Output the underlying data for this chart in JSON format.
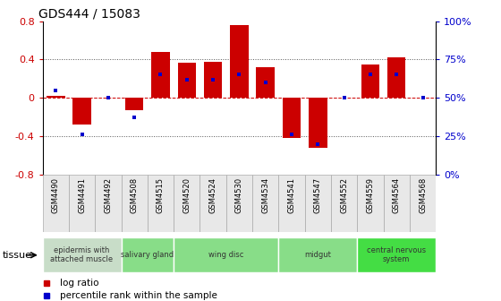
{
  "title": "GDS444 / 15083",
  "samples": [
    "GSM4490",
    "GSM4491",
    "GSM4492",
    "GSM4508",
    "GSM4515",
    "GSM4520",
    "GSM4524",
    "GSM4530",
    "GSM4534",
    "GSM4541",
    "GSM4547",
    "GSM4552",
    "GSM4559",
    "GSM4564",
    "GSM4568"
  ],
  "log_ratio": [
    0.02,
    -0.28,
    0.0,
    -0.13,
    0.48,
    0.37,
    0.38,
    0.76,
    0.32,
    -0.42,
    -0.52,
    0.0,
    0.35,
    0.42,
    0.0
  ],
  "percentile": [
    55,
    26,
    50,
    37,
    65,
    62,
    62,
    65,
    60,
    26,
    20,
    50,
    65,
    65,
    50
  ],
  "ylim": [
    -0.8,
    0.8
  ],
  "yticks_left": [
    -0.8,
    -0.4,
    0.0,
    0.4,
    0.8
  ],
  "right_yticks_pct": [
    0,
    25,
    50,
    75,
    100
  ],
  "bar_color": "#cc0000",
  "dot_color": "#0000cc",
  "tissue_groups": [
    {
      "label": "epidermis with\nattached muscle",
      "indices": [
        0,
        1,
        2
      ],
      "color": "#c8ddc8"
    },
    {
      "label": "salivary gland",
      "indices": [
        3,
        4
      ],
      "color": "#88dd88"
    },
    {
      "label": "wing disc",
      "indices": [
        5,
        6,
        7,
        8
      ],
      "color": "#88dd88"
    },
    {
      "label": "midgut",
      "indices": [
        9,
        10,
        11
      ],
      "color": "#88dd88"
    },
    {
      "label": "central nervous\nsystem",
      "indices": [
        12,
        13,
        14
      ],
      "color": "#44dd44"
    }
  ]
}
